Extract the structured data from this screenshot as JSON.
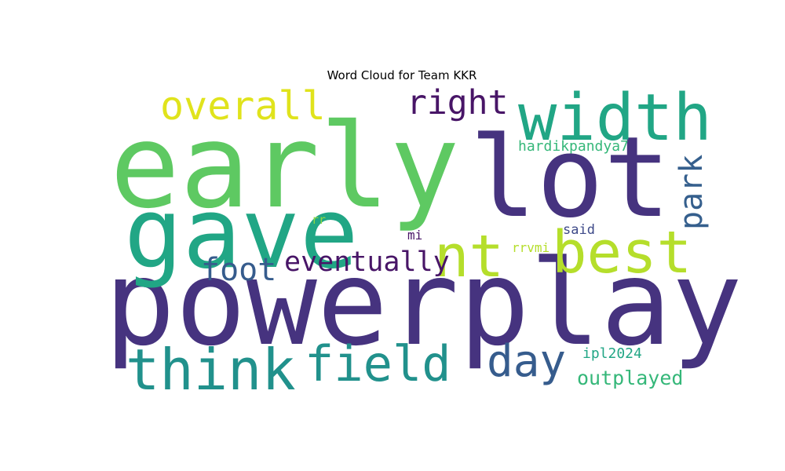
{
  "chart_data": {
    "type": "wordcloud",
    "title": "Word Cloud for Team KKR",
    "colormap": "viridis",
    "words": [
      {
        "text": "powerplay",
        "weight": 1.0,
        "color": "#46337f"
      },
      {
        "text": "early",
        "weight": 0.86,
        "color": "#5ec962"
      },
      {
        "text": "lot",
        "weight": 0.79,
        "color": "#46337f"
      },
      {
        "text": "gave",
        "weight": 0.75,
        "color": "#21a685"
      },
      {
        "text": "width",
        "weight": 0.47,
        "color": "#21a685"
      },
      {
        "text": "nt",
        "weight": 0.43,
        "color": "#b5de2b"
      },
      {
        "text": "best",
        "weight": 0.43,
        "color": "#b5de2b"
      },
      {
        "text": "think",
        "weight": 0.41,
        "color": "#21918c"
      },
      {
        "text": "field",
        "weight": 0.37,
        "color": "#21918c"
      },
      {
        "text": "day",
        "weight": 0.31,
        "color": "#365c8d"
      },
      {
        "text": "overall",
        "weight": 0.29,
        "color": "#e0e31c"
      },
      {
        "text": "right",
        "weight": 0.25,
        "color": "#481567"
      },
      {
        "text": "foot",
        "weight": 0.23,
        "color": "#365c8d"
      },
      {
        "text": "park",
        "weight": 0.23,
        "color": "#355f8d"
      },
      {
        "text": "eventually",
        "weight": 0.2,
        "color": "#481567"
      },
      {
        "text": "outplayed",
        "weight": 0.15,
        "color": "#35b779"
      },
      {
        "text": "hardikpandya7",
        "weight": 0.1,
        "color": "#35b779"
      },
      {
        "text": "ipl2024",
        "weight": 0.1,
        "color": "#21a685"
      },
      {
        "text": "said",
        "weight": 0.09,
        "color": "#3e4a89"
      },
      {
        "text": "rrvmi",
        "weight": 0.09,
        "color": "#b5de2b"
      },
      {
        "text": "mi",
        "weight": 0.08,
        "color": "#481567"
      },
      {
        "text": "rr",
        "weight": 0.08,
        "color": "#8fd744"
      }
    ]
  }
}
